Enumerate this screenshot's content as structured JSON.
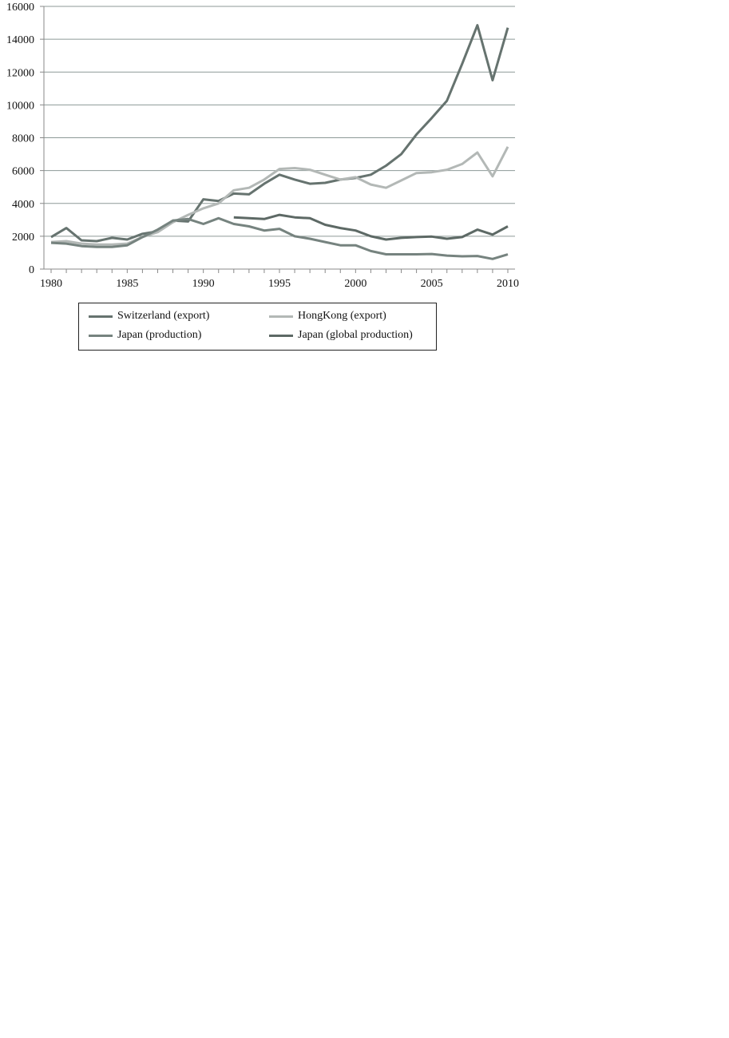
{
  "chart_data": {
    "type": "line",
    "title": "",
    "xlabel": "",
    "ylabel": "",
    "xlim": [
      1980,
      2010
    ],
    "ylim": [
      0,
      16000
    ],
    "x_ticks": [
      "1980",
      "1985",
      "1990",
      "1995",
      "2000",
      "2005",
      "2010"
    ],
    "y_ticks": [
      "0",
      "2000",
      "4000",
      "6000",
      "8000",
      "10000",
      "12000",
      "14000",
      "16000"
    ],
    "grid": "horizontal",
    "legend_position": "bottom",
    "series": [
      {
        "name": "Switzerland (export)",
        "color": "#66736f",
        "start": 1980,
        "values": [
          1950,
          2500,
          1750,
          1700,
          1900,
          1800,
          2150,
          2300,
          2950,
          2900,
          4250,
          4150,
          4600,
          4550,
          5200,
          5750,
          5450,
          5200,
          5250,
          5450,
          5550,
          5750,
          6300,
          7000,
          8200,
          9200,
          10250,
          12500,
          14850,
          11500,
          14700
        ]
      },
      {
        "name": "HongKong (export)",
        "color": "#b3b8b6",
        "start": 1980,
        "values": [
          1650,
          1700,
          1550,
          1500,
          1500,
          1550,
          1950,
          2250,
          2850,
          3300,
          3700,
          4000,
          4800,
          4950,
          5450,
          6100,
          6150,
          6050,
          5750,
          5450,
          5600,
          5150,
          4950,
          5400,
          5850,
          5900,
          6050,
          6400,
          7100,
          5650,
          7450
        ]
      },
      {
        "name": "Japan (production)",
        "color": "#76837f",
        "start": 1980,
        "values": [
          1600,
          1550,
          1400,
          1350,
          1350,
          1450,
          1950,
          2400,
          2950,
          3050,
          2750,
          3100,
          2750,
          2600,
          2350,
          2450,
          2000,
          1850,
          1650,
          1450,
          1450,
          1100,
          900,
          900,
          900,
          920,
          820,
          780,
          800,
          620,
          900
        ]
      },
      {
        "name": "Japan (global production)",
        "color": "#5d6965",
        "start": 1992,
        "values": [
          3150,
          3100,
          3050,
          3300,
          3150,
          3100,
          2700,
          2500,
          2350,
          2000,
          1800,
          1900,
          1950,
          1980,
          1850,
          1950,
          2400,
          2100,
          2600
        ]
      }
    ]
  }
}
